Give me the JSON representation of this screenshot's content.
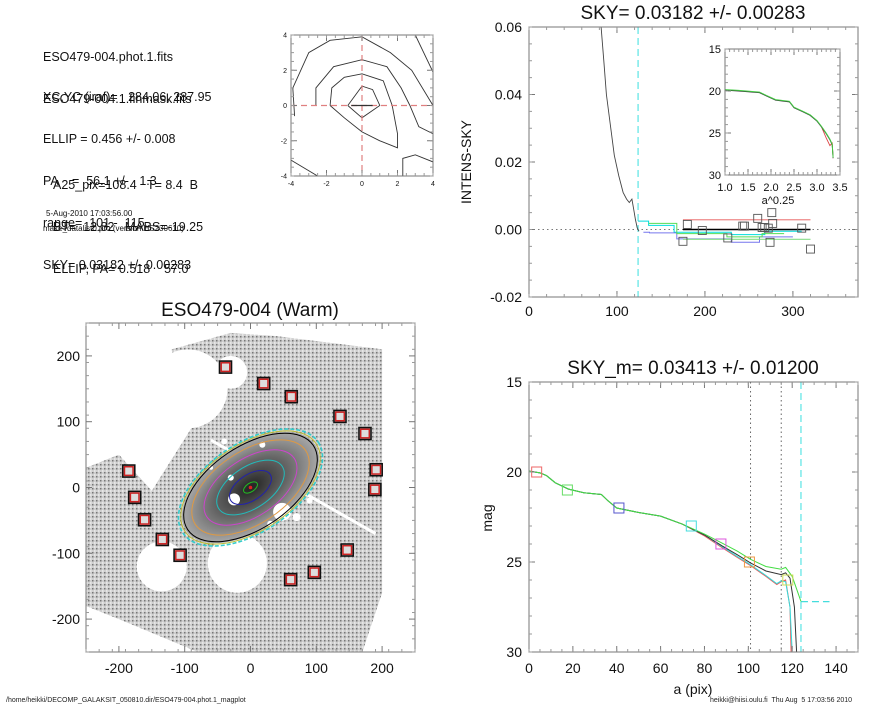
{
  "info": {
    "files": [
      "ESO479-004.phot.1.fits",
      "ESO479-004.1.finmask.fits"
    ],
    "params": [
      "XC,YC (iraf)=   284.06, 287.95",
      "ELLIP = 0.456 +/- 0.008",
      "PA    =  56.1 +/-   1.3",
      "range=  101.-  115.",
      "SKY= 0.03182 +/- 0.00283"
    ],
    "catalog": [
      "A25_pix=108.4   T= 8.4  B",
      "BT=  12.82   MABS=-19.25",
      "ELLIP, PA= 0.518    57.0"
    ],
    "timestamp": "5-Aug-2010 17:03:56.00",
    "program": "make_datalist0.pro (version HS230610)"
  },
  "footer": {
    "path": "/home/heikki/DECOMP_GALAKSIT_050810.dir/ESO479-004.phot.1_magplot",
    "user_date": "heikki@hiisi.oulu.fi  Thu Aug  5 17:03:56 2010"
  },
  "chart_data": [
    {
      "id": "contour",
      "type": "line",
      "title": "",
      "xlim": [
        -4,
        4
      ],
      "ylim": [
        -4,
        4
      ],
      "xticks": [
        -4,
        -2,
        0,
        2,
        4
      ],
      "yticks": [
        -4,
        -2,
        0,
        2,
        4
      ],
      "contours": [
        [
          [
            -0.8,
            0
          ],
          [
            0,
            1.1
          ],
          [
            0.6,
            0.9
          ],
          [
            1.0,
            0
          ],
          [
            0,
            -0.7
          ],
          [
            -0.8,
            0
          ]
        ],
        [
          [
            -1.8,
            0
          ],
          [
            -1.7,
            1
          ],
          [
            -1.0,
            1.6
          ],
          [
            0,
            1.8
          ],
          [
            1.2,
            1.4
          ],
          [
            1.7,
            0
          ],
          [
            2.0,
            -1.6
          ],
          [
            2.0,
            -2.4
          ],
          [
            1.0,
            -2.0
          ],
          [
            0,
            -1.5
          ],
          [
            -1.0,
            -0.7
          ],
          [
            -1.8,
            0
          ]
        ],
        [
          [
            -2.6,
            0
          ],
          [
            -2.6,
            1
          ],
          [
            -1.6,
            2.2
          ],
          [
            0,
            2.6
          ],
          [
            1.4,
            2.2
          ],
          [
            2.2,
            1
          ],
          [
            2.7,
            0
          ],
          [
            3.2,
            -1.2
          ],
          [
            4,
            -1.6
          ]
        ],
        [
          [
            -3.8,
            -0.6
          ],
          [
            -3.9,
            1
          ],
          [
            -3.0,
            3.0
          ],
          [
            -1.8,
            3.7
          ],
          [
            0,
            3.9
          ],
          [
            1.6,
            3.0
          ],
          [
            2.8,
            2.0
          ],
          [
            4,
            0
          ]
        ],
        [
          [
            -4,
            -3.1
          ],
          [
            -2.5,
            -4
          ]
        ],
        [
          [
            3.0,
            4
          ],
          [
            4,
            1.9
          ]
        ],
        [
          [
            2.3,
            -4
          ],
          [
            2.3,
            -3.0
          ],
          [
            3.0,
            -2.8
          ],
          [
            4,
            -3.2
          ]
        ]
      ],
      "crosshair": {
        "x": 0,
        "y": 0
      }
    },
    {
      "id": "sky-profile",
      "type": "line",
      "title": "SKY= 0.03182 +/- 0.00283",
      "xlabel": "",
      "ylabel": "INTENS-SKY",
      "xlim": [
        0,
        374
      ],
      "ylim": [
        -0.02,
        0.06
      ],
      "xticks": [
        0,
        100,
        200,
        300
      ],
      "yticks": [
        -0.02,
        0.0,
        0.02,
        0.04,
        0.06
      ],
      "ytick_labels": [
        "-0.02",
        "0.00",
        "0.02",
        "0.04",
        "0.06"
      ],
      "vline_x": 124,
      "profile": [
        [
          82,
          0.06
        ],
        [
          85,
          0.05
        ],
        [
          88,
          0.04
        ],
        [
          92,
          0.032
        ],
        [
          97,
          0.022
        ],
        [
          102,
          0.016
        ],
        [
          107,
          0.011
        ],
        [
          111,
          0.009
        ],
        [
          114,
          0.008
        ],
        [
          117,
          0.009
        ],
        [
          119,
          0.006
        ],
        [
          121,
          0.003
        ],
        [
          123,
          0.0005
        ],
        [
          125,
          -0.0005
        ]
      ],
      "steps": [
        {
          "color": "#00dddd",
          "points": [
            [
              124,
              0.0025
            ],
            [
              136,
              0.0025
            ],
            [
              136,
              0.0012
            ],
            [
              165,
              0.0012
            ],
            [
              165,
              -0.0008
            ],
            [
              230,
              -0.0008
            ],
            [
              230,
              -0.0015
            ],
            [
              268,
              -0.0015
            ],
            [
              268,
              -0.0005
            ],
            [
              310,
              -0.0005
            ]
          ]
        },
        {
          "color": "#7777ee",
          "points": [
            [
              130,
              -0.0008
            ],
            [
              137,
              -0.0008
            ],
            [
              137,
              -0.001
            ],
            [
              168,
              -0.001
            ],
            [
              168,
              -0.0028
            ],
            [
              230,
              -0.0028
            ],
            [
              230,
              -0.0038
            ],
            [
              262,
              -0.0038
            ],
            [
              262,
              -0.0022
            ],
            [
              300,
              -0.0022
            ]
          ]
        },
        {
          "color": "#55dd55",
          "points": [
            [
              136,
              0.0018
            ],
            [
              168,
              0.0018
            ],
            [
              168,
              -0.0012
            ],
            [
              225,
              -0.0012
            ],
            [
              225,
              -0.0022
            ],
            [
              265,
              -0.0022
            ],
            [
              265,
              -0.0012
            ],
            [
              290,
              -0.0012
            ]
          ]
        }
      ],
      "sky_lines": [
        {
          "color": "#ee8888",
          "y": 0.0029,
          "x": [
            175,
            320
          ]
        },
        {
          "color": "#000000",
          "y": 0.0,
          "x": [
            175,
            320
          ]
        },
        {
          "color": "#88dd88",
          "y": -0.0029,
          "x": [
            175,
            320
          ]
        }
      ],
      "squares": [
        [
          175,
          -0.0035
        ],
        [
          180,
          0.0015
        ],
        [
          197,
          -0.0003
        ],
        [
          226,
          -0.0025
        ],
        [
          243,
          0.001
        ],
        [
          245,
          0.001
        ],
        [
          260,
          0.0033
        ],
        [
          265,
          0.0006
        ],
        [
          268,
          0.0006
        ],
        [
          272,
          0.0004
        ],
        [
          274,
          -0.0038
        ],
        [
          276,
          0.005
        ],
        [
          277,
          0.0018
        ],
        [
          310,
          0.0004
        ],
        [
          320,
          -0.0058
        ]
      ],
      "inset": {
        "xlabel": "a^0.25",
        "xlim": [
          1.0,
          3.5
        ],
        "ylim": [
          15,
          30
        ],
        "xticks": [
          1.0,
          1.5,
          2.0,
          2.5,
          3.0,
          3.5
        ],
        "xtick_labels": [
          "1.0",
          "1.5",
          "2.0",
          "2.5",
          "3.0",
          "3.5"
        ],
        "yticks": [
          15,
          20,
          25,
          30
        ],
        "curve": [
          [
            1.0,
            19.9
          ],
          [
            1.3,
            20.0
          ],
          [
            1.75,
            20.2
          ],
          [
            1.9,
            20.6
          ],
          [
            2.1,
            21.1
          ],
          [
            2.4,
            21.3
          ],
          [
            2.5,
            22.0
          ],
          [
            2.7,
            22.5
          ],
          [
            2.85,
            22.9
          ],
          [
            3.0,
            23.6
          ],
          [
            3.1,
            24.3
          ],
          [
            3.2,
            25.1
          ],
          [
            3.28,
            25.8
          ],
          [
            3.33,
            26.4
          ],
          [
            3.35,
            28.0
          ]
        ],
        "curve_red": [
          [
            3.1,
            24.3
          ],
          [
            3.2,
            25.6
          ],
          [
            3.28,
            26.5
          ],
          [
            3.33,
            26.2
          ],
          [
            3.35,
            28.0
          ]
        ]
      }
    },
    {
      "id": "mag-profile",
      "type": "line",
      "title": "SKY_m=  0.03413 +/- 0.01200",
      "xlabel": "a (pix)",
      "ylabel": "mag",
      "xlim": [
        0,
        150
      ],
      "ylim": [
        15,
        30
      ],
      "xticks": [
        0,
        20,
        40,
        60,
        80,
        100,
        120,
        140
      ],
      "yticks": [
        15,
        20,
        25,
        30
      ],
      "dotted_vlines": [
        101,
        115
      ],
      "dashed_vline": 124,
      "dashed_hline": {
        "y": 27.2,
        "x": [
          124,
          137
        ]
      },
      "series": [
        {
          "name": "black",
          "color": "#333333",
          "points": [
            [
              0,
              19.95
            ],
            [
              5,
              20.05
            ],
            [
              8,
              20.2
            ],
            [
              12,
              20.6
            ],
            [
              18,
              20.95
            ],
            [
              25,
              21.15
            ],
            [
              33,
              21.25
            ],
            [
              36,
              21.6
            ],
            [
              40,
              22.0
            ],
            [
              50,
              22.25
            ],
            [
              60,
              22.45
            ],
            [
              70,
              22.9
            ],
            [
              80,
              23.5
            ],
            [
              88,
              24.1
            ],
            [
              95,
              24.6
            ],
            [
              101,
              25.05
            ],
            [
              108,
              25.5
            ],
            [
              115,
              25.7
            ],
            [
              117,
              25.6
            ],
            [
              119,
              25.9
            ],
            [
              121,
              27.5
            ],
            [
              122,
              30
            ]
          ]
        },
        {
          "name": "green",
          "color": "#44dd44",
          "points": [
            [
              0,
              19.95
            ],
            [
              5,
              20.05
            ],
            [
              8,
              20.2
            ],
            [
              12,
              20.6
            ],
            [
              18,
              20.95
            ],
            [
              25,
              21.15
            ],
            [
              33,
              21.25
            ],
            [
              36,
              21.6
            ],
            [
              40,
              22.0
            ],
            [
              50,
              22.25
            ],
            [
              60,
              22.45
            ],
            [
              70,
              22.9
            ],
            [
              80,
              23.45
            ],
            [
              88,
              23.95
            ],
            [
              95,
              24.4
            ],
            [
              101,
              24.85
            ],
            [
              108,
              25.25
            ],
            [
              115,
              25.4
            ],
            [
              117,
              25.3
            ],
            [
              120,
              25.8
            ],
            [
              124,
              27.2
            ]
          ]
        },
        {
          "name": "red",
          "color": "#ee5555",
          "points": [
            [
              0,
              19.95
            ],
            [
              5,
              20.05
            ],
            [
              8,
              20.2
            ],
            [
              12,
              20.6
            ],
            [
              18,
              20.95
            ],
            [
              25,
              21.15
            ],
            [
              33,
              21.25
            ],
            [
              36,
              21.6
            ],
            [
              40,
              22.0
            ],
            [
              50,
              22.25
            ],
            [
              60,
              22.45
            ],
            [
              70,
              22.9
            ],
            [
              80,
              23.55
            ],
            [
              88,
              24.2
            ],
            [
              95,
              24.75
            ],
            [
              101,
              25.2
            ],
            [
              108,
              25.8
            ],
            [
              113,
              26.25
            ],
            [
              115,
              26.1
            ],
            [
              117,
              26.0
            ],
            [
              119,
              27.5
            ],
            [
              119.5,
              30
            ]
          ]
        },
        {
          "name": "cyan",
          "color": "#33dddd",
          "points": [
            [
              0,
              19.95
            ],
            [
              5,
              20.05
            ],
            [
              8,
              20.2
            ],
            [
              12,
              20.6
            ],
            [
              18,
              20.95
            ],
            [
              25,
              21.15
            ],
            [
              33,
              21.25
            ],
            [
              36,
              21.6
            ],
            [
              40,
              22.0
            ],
            [
              50,
              22.25
            ],
            [
              60,
              22.45
            ],
            [
              70,
              22.9
            ],
            [
              80,
              23.5
            ],
            [
              88,
              24.15
            ],
            [
              95,
              24.7
            ],
            [
              101,
              25.15
            ],
            [
              108,
              25.75
            ],
            [
              113,
              26.2
            ],
            [
              115,
              26.05
            ],
            [
              117,
              26.1
            ],
            [
              119,
              27.5
            ],
            [
              120,
              30
            ]
          ]
        }
      ],
      "squares": [
        {
          "x": 3.5,
          "y": 20.0,
          "color": "#ee6666"
        },
        {
          "x": 17.5,
          "y": 21.0,
          "color": "#66dd66"
        },
        {
          "x": 41,
          "y": 22.0,
          "color": "#5555cc"
        },
        {
          "x": 74,
          "y": 23.0,
          "color": "#44dddd"
        },
        {
          "x": 87.5,
          "y": 24.0,
          "color": "#dd55dd"
        },
        {
          "x": 100.5,
          "y": 25.0,
          "color": "#ee9944"
        },
        {
          "x": 118,
          "y": 26.0,
          "color": "#ccdd55"
        }
      ]
    },
    {
      "id": "galaxy-image",
      "type": "scatter",
      "title": "ESO479-004 (Warm)",
      "xlim": [
        -250,
        250
      ],
      "ylim": [
        -250,
        250
      ],
      "xticks": [
        -200,
        -100,
        0,
        100,
        200
      ],
      "yticks": [
        -200,
        -100,
        0,
        100,
        200
      ],
      "ellipse": {
        "ellip": 0.456,
        "pa_deg": 56.1,
        "semi_major": 124
      },
      "isophotes": [
        {
          "a": 12,
          "color": "#22bb22"
        },
        {
          "a": 36,
          "color": "#2222aa"
        },
        {
          "a": 58,
          "color": "#22bbbb"
        },
        {
          "a": 80,
          "color": "#cc44cc"
        },
        {
          "a": 101,
          "color": "#dd9944"
        },
        {
          "a": 115,
          "color": "#000000"
        },
        {
          "a": 120,
          "color": "#bbbb33"
        },
        {
          "a": 124,
          "color": "#33cccc"
        }
      ],
      "sky_boxes": [
        [
          -38,
          183
        ],
        [
          20,
          158
        ],
        [
          62,
          138
        ],
        [
          136,
          108
        ],
        [
          174,
          82
        ],
        [
          191,
          27
        ],
        [
          189,
          -3
        ],
        [
          -185,
          25
        ],
        [
          -176,
          -15
        ],
        [
          -161,
          -49
        ],
        [
          -134,
          -79
        ],
        [
          -107,
          -103
        ],
        [
          147,
          -95
        ],
        [
          97,
          -129
        ],
        [
          61,
          -140
        ]
      ]
    }
  ]
}
